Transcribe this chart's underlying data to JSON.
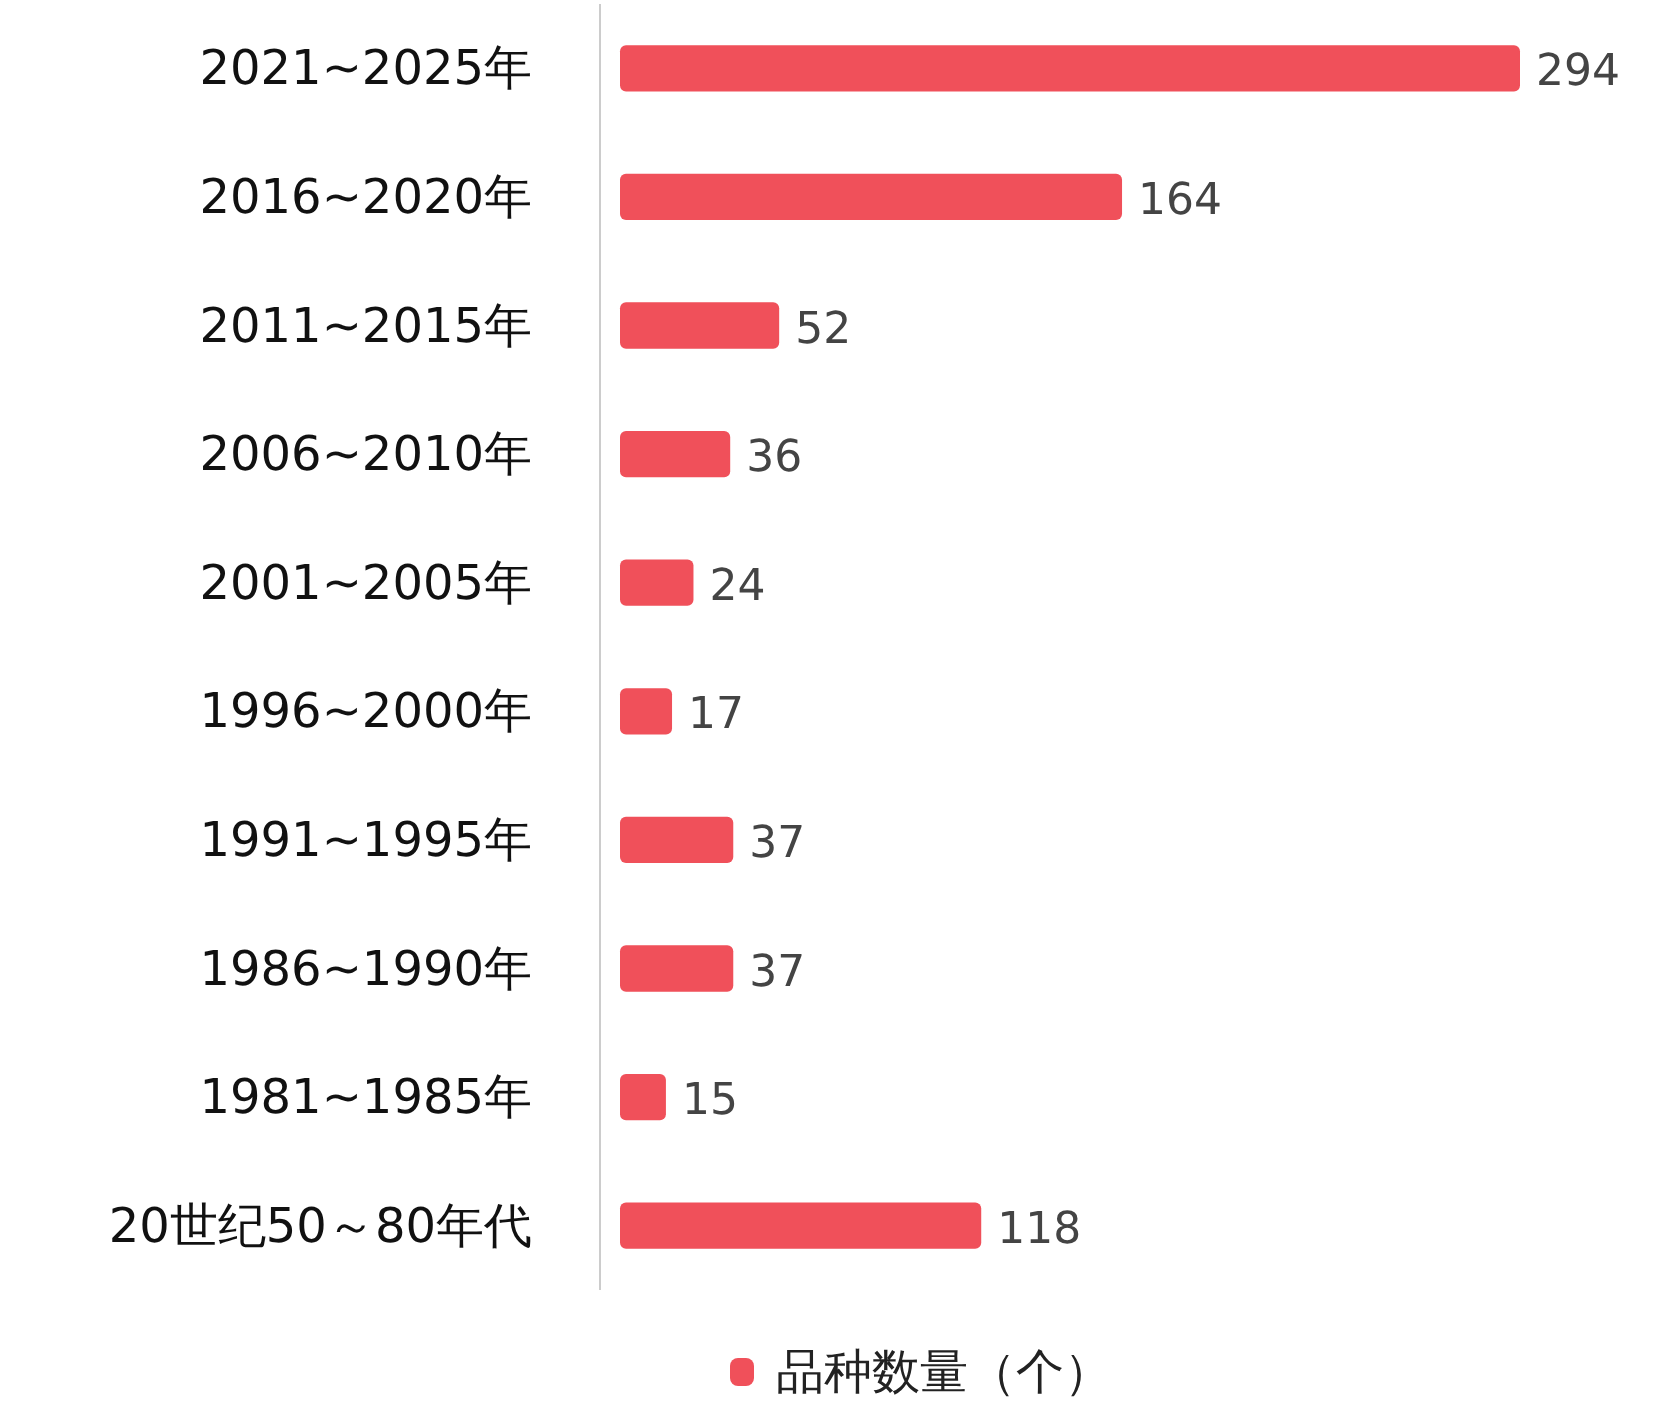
{
  "chart_data": {
    "type": "bar",
    "orientation": "horizontal",
    "categories": [
      "2021~2025年",
      "2016~2020年",
      "2011~2015年",
      "2006~2010年",
      "2001~2005年",
      "1996~2000年",
      "1991~1995年",
      "1986~1990年",
      "1981~1985年",
      "20世纪50～80年代"
    ],
    "series": [
      {
        "name": "品种数量（个）",
        "color": "#f0505a",
        "values": [
          294,
          164,
          52,
          36,
          24,
          17,
          37,
          37,
          15,
          118
        ]
      }
    ],
    "data_labels": true,
    "legend": "bottom"
  }
}
